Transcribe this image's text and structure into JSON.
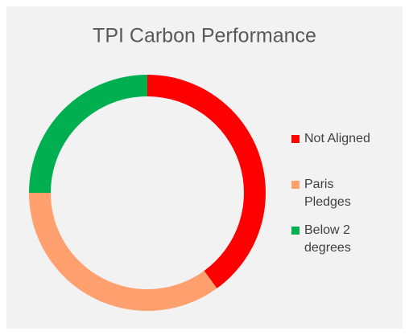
{
  "chart_data": {
    "type": "donut",
    "title": "TPI Carbon Performance",
    "categories": [
      "Not Aligned",
      "Paris Pledges",
      "Below 2 degrees"
    ],
    "values": [
      40,
      35,
      25
    ],
    "colors": [
      "#ff0000",
      "#ffa06e",
      "#00b050"
    ],
    "legend": "right"
  }
}
